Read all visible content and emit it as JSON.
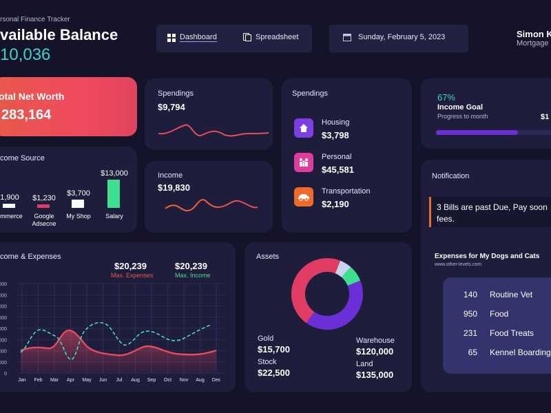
{
  "header": {
    "subtitle": "rsonal Finance Tracker",
    "title": "vailable Balance",
    "balance": "10,036"
  },
  "nav": {
    "dashboard_label": "Dashboard",
    "spreadsheet_label": "Spreadsheet"
  },
  "date": {
    "text": "Sunday, February 5, 2023"
  },
  "user": {
    "name": "Simon K",
    "role": "Mortgage"
  },
  "net_worth": {
    "label": "otal Net Worth",
    "value": "283,164"
  },
  "spendings_small": {
    "label": "Spendings",
    "value": "$9,794"
  },
  "income_small": {
    "label": "Income",
    "value": "$19,830"
  },
  "spendings_breakdown": {
    "title": "Spendings",
    "items": [
      {
        "label": "Housing",
        "value": "$3,798",
        "icon": "house-icon",
        "color": "#7b3fe4"
      },
      {
        "label": "Personal",
        "value": "$45,581",
        "icon": "family-icon",
        "color": "#e03ca0"
      },
      {
        "label": "Transportation",
        "value": "$2,190",
        "icon": "car-icon",
        "color": "#f06b2a"
      }
    ]
  },
  "income_goal": {
    "percent": "67%",
    "label": "Income Goal",
    "sub": "Progress to month",
    "right_value": "$1",
    "progress": 0.67
  },
  "income_source": {
    "title": "come Source",
    "values": [
      "1,900",
      "$1,230",
      "$3,700",
      "$13,000"
    ],
    "names": [
      "ommerce",
      "Google Adsecne",
      "My Shop",
      "Salary"
    ],
    "amounts": [
      1900,
      1230,
      3700,
      13000
    ],
    "colors": [
      "#ffffff",
      "#e03c6a",
      "#ffffff",
      "#3ee08f"
    ]
  },
  "income_expenses": {
    "title": "come & Expenses",
    "max_expenses": "$20,239",
    "max_expenses_label": "Max. Expenses",
    "max_income": "$20,239",
    "max_income_label": "Max. Income",
    "months": [
      "Jan",
      "Feb",
      "Mar",
      "Apr",
      "May",
      "Jun",
      "Jul",
      "Aug",
      "Sep",
      "Oct",
      "Nov",
      "Aug",
      "Dec"
    ],
    "y_ticks": [
      "000",
      "000",
      "000",
      "000",
      "000",
      "000",
      "000",
      "000",
      "0"
    ]
  },
  "assets": {
    "title": "Assets",
    "items": [
      {
        "label": "Gold",
        "value": "$15,700"
      },
      {
        "label": "Warehouse",
        "value": "$120,000"
      },
      {
        "label": "Stock",
        "value": "$22,500"
      },
      {
        "label": "Land",
        "value": "$135,000"
      }
    ],
    "donut": [
      {
        "label": "Warehouse",
        "value": 120000,
        "color": "#6a2fd6"
      },
      {
        "label": "Land",
        "value": 135000,
        "color": "#e03c64"
      },
      {
        "label": "Gold",
        "value": 15700,
        "color": "#c8d3ee"
      },
      {
        "label": "Stock",
        "value": 22500,
        "color": "#3ee08f"
      }
    ]
  },
  "notification": {
    "title": "Notification",
    "message": "3 Bills are past Due, Pay soon fees."
  },
  "dogs": {
    "title": "Expenses for My Dogs and Cats",
    "site": "www.other-levels.com",
    "rows": [
      {
        "n": "140",
        "label": "Routine Vet"
      },
      {
        "n": "950",
        "label": "Food"
      },
      {
        "n": "231",
        "label": "Food Treats"
      },
      {
        "n": "65",
        "label": "Kennel Boarding"
      }
    ]
  }
}
